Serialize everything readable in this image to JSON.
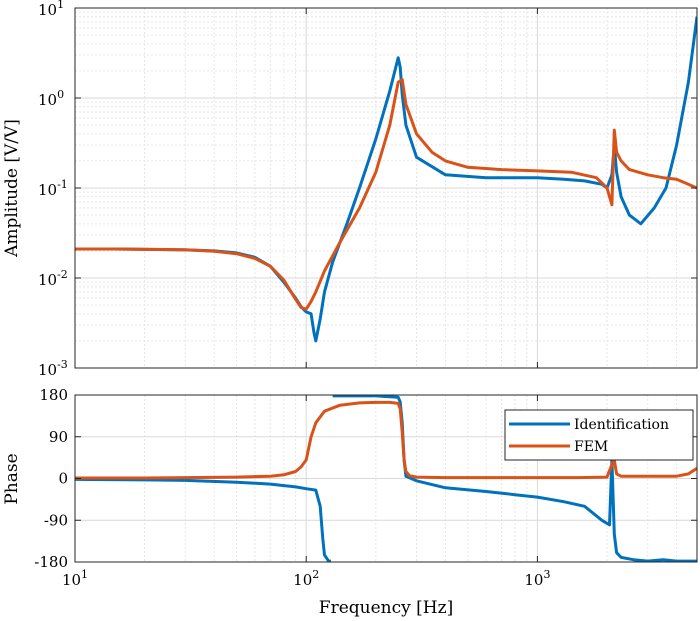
{
  "chart_data": [
    {
      "type": "line",
      "ylabel": "Amplitude [V/V]",
      "xlabel": "",
      "x_scale": "log",
      "y_scale": "log",
      "xlim": [
        10,
        4900
      ],
      "ylim": [
        0.001,
        10
      ],
      "grid": true,
      "y_ticks": [
        {
          "value": 0.001,
          "base": "10",
          "exp": "-3"
        },
        {
          "value": 0.01,
          "base": "10",
          "exp": "-2"
        },
        {
          "value": 0.1,
          "base": "10",
          "exp": "-1"
        },
        {
          "value": 1,
          "base": "10",
          "exp": "0"
        },
        {
          "value": 10,
          "base": "10",
          "exp": "1"
        }
      ],
      "series": [
        {
          "name": "Identification",
          "color": "#0072BD",
          "x": [
            10,
            15,
            20,
            30,
            40,
            50,
            60,
            70,
            80,
            90,
            95,
            100,
            105,
            108,
            110,
            115,
            120,
            130,
            150,
            170,
            200,
            230,
            250,
            255,
            260,
            270,
            300,
            400,
            600,
            800,
            1000,
            1300,
            1600,
            1900,
            2000,
            2100,
            2150,
            2200,
            2300,
            2500,
            2800,
            3200,
            3600,
            4000,
            4500,
            4900
          ],
          "y": [
            0.021,
            0.021,
            0.0208,
            0.0205,
            0.02,
            0.019,
            0.017,
            0.0135,
            0.009,
            0.006,
            0.0048,
            0.0042,
            0.004,
            0.0025,
            0.002,
            0.0035,
            0.007,
            0.015,
            0.04,
            0.1,
            0.35,
            1.2,
            2.8,
            2.2,
            1.1,
            0.5,
            0.22,
            0.14,
            0.13,
            0.13,
            0.13,
            0.125,
            0.12,
            0.11,
            0.1,
            0.14,
            0.3,
            0.15,
            0.08,
            0.05,
            0.04,
            0.06,
            0.1,
            0.3,
            1.5,
            8
          ]
        },
        {
          "name": "FEM",
          "color": "#D95319",
          "x": [
            10,
            15,
            20,
            30,
            40,
            50,
            60,
            70,
            80,
            90,
            95,
            100,
            105,
            110,
            120,
            140,
            170,
            200,
            230,
            250,
            260,
            270,
            300,
            350,
            400,
            500,
            700,
            1000,
            1400,
            1800,
            2000,
            2100,
            2150,
            2200,
            2300,
            2500,
            3000,
            3500,
            4000,
            4900
          ],
          "y": [
            0.021,
            0.021,
            0.0209,
            0.0206,
            0.0198,
            0.0186,
            0.0165,
            0.0135,
            0.0095,
            0.0058,
            0.0047,
            0.0045,
            0.0055,
            0.007,
            0.012,
            0.025,
            0.06,
            0.15,
            0.5,
            1.5,
            1.6,
            0.85,
            0.4,
            0.25,
            0.2,
            0.17,
            0.16,
            0.155,
            0.15,
            0.13,
            0.1,
            0.065,
            0.44,
            0.25,
            0.2,
            0.16,
            0.14,
            0.13,
            0.125,
            0.1
          ]
        }
      ]
    },
    {
      "type": "line",
      "xlabel": "Frequency [Hz]",
      "ylabel": "Phase",
      "x_scale": "log",
      "xlim": [
        10,
        4900
      ],
      "ylim": [
        -180,
        180
      ],
      "grid": true,
      "legend_position": "top-right",
      "y_ticks": [
        "180",
        "90",
        "0",
        "-90",
        "-180"
      ],
      "x_ticks": [
        {
          "value": 10,
          "base": "10",
          "exp": "1"
        },
        {
          "value": 100,
          "base": "10",
          "exp": "2"
        },
        {
          "value": 1000,
          "base": "10",
          "exp": "3"
        }
      ],
      "series": [
        {
          "name": "Identification",
          "color": "#0072BD",
          "x": [
            10,
            20,
            30,
            50,
            70,
            90,
            100,
            110,
            115,
            118,
            120,
            125,
            128,
            130,
            150,
            200,
            250,
            255,
            260,
            265,
            270,
            300,
            400,
            600,
            800,
            1000,
            1300,
            1600,
            1900,
            2050,
            2100,
            2150,
            2200,
            2300,
            2600,
            3000,
            3500,
            4000,
            4500,
            4900
          ],
          "y": [
            -2,
            -3,
            -4,
            -8,
            -12,
            -18,
            -22,
            -25,
            -60,
            -130,
            -165,
            -178,
            -178,
            178,
            178,
            178,
            175,
            165,
            120,
            40,
            5,
            -5,
            -20,
            -28,
            -35,
            -40,
            -50,
            -60,
            -90,
            -100,
            40,
            -120,
            -160,
            -170,
            -175,
            -178,
            -175,
            -178,
            -178,
            -178
          ]
        },
        {
          "name": "FEM",
          "color": "#D95319",
          "x": [
            10,
            20,
            30,
            50,
            70,
            80,
            90,
            95,
            100,
            105,
            110,
            120,
            140,
            170,
            200,
            230,
            250,
            255,
            260,
            265,
            270,
            280,
            300,
            400,
            600,
            1000,
            1500,
            2000,
            2100,
            2150,
            2200,
            2300,
            2600,
            3000,
            4000,
            4500,
            4900
          ],
          "y": [
            1,
            1,
            2,
            3,
            5,
            8,
            15,
            25,
            40,
            90,
            120,
            145,
            158,
            163,
            164,
            164,
            162,
            150,
            100,
            40,
            15,
            6,
            3,
            2,
            2,
            2,
            2,
            3,
            30,
            40,
            10,
            5,
            5,
            5,
            5,
            10,
            22
          ]
        }
      ]
    }
  ]
}
